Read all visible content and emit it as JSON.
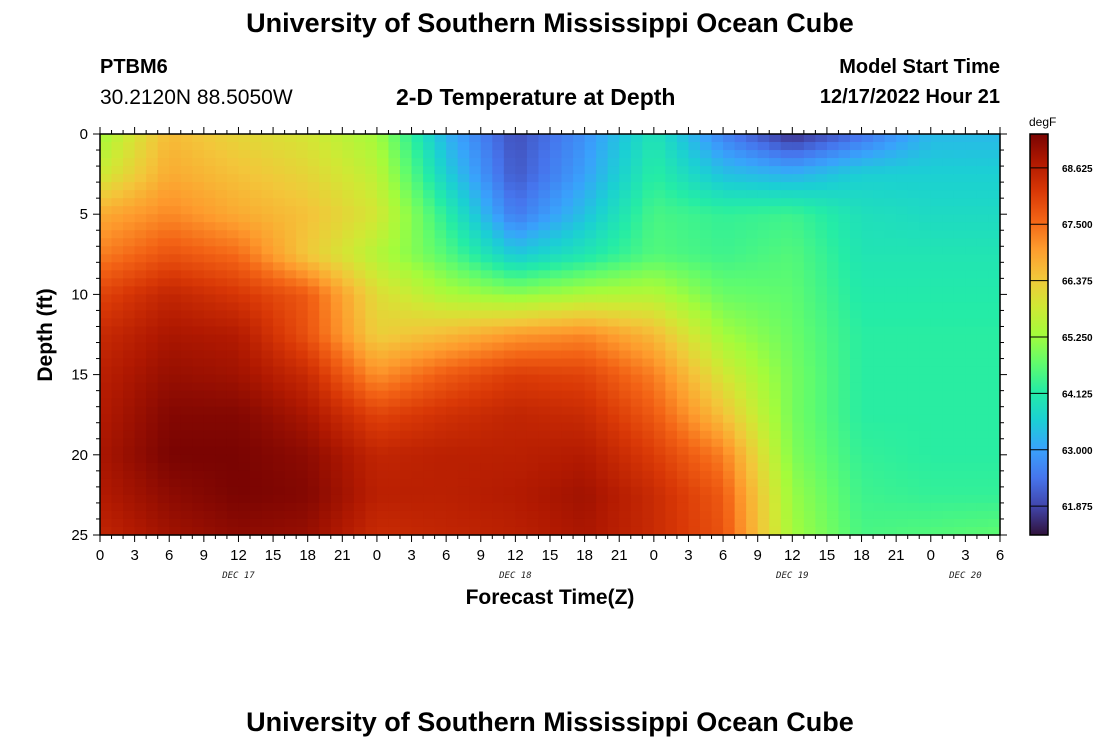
{
  "header": {
    "title": "University of Southern Mississippi Ocean Cube",
    "station": "PTBM6",
    "coords": "30.2120N  88.5050W",
    "subtitle": "2-D Temperature at Depth",
    "model_start_label": "Model Start Time",
    "model_start_value": "12/17/2022 Hour 21"
  },
  "footer": {
    "title": "University of Southern Mississippi Ocean Cube"
  },
  "chart_data": {
    "type": "heatmap",
    "title": "2-D Temperature at Depth",
    "xlabel": "Forecast Time(Z)",
    "ylabel": "Depth (ft)",
    "xlim": [
      0,
      78
    ],
    "ylim": [
      0,
      25
    ],
    "y_inverted": true,
    "x_ticks": [
      0,
      3,
      6,
      9,
      12,
      15,
      18,
      21,
      24,
      27,
      30,
      33,
      36,
      39,
      42,
      45,
      48,
      51,
      54,
      57,
      60,
      63,
      66,
      69,
      72,
      75,
      78
    ],
    "x_tick_labels": [
      "0",
      "3",
      "6",
      "9",
      "12",
      "15",
      "18",
      "21",
      "0",
      "3",
      "6",
      "9",
      "12",
      "15",
      "18",
      "21",
      "0",
      "3",
      "6",
      "9",
      "12",
      "15",
      "18",
      "21",
      "0",
      "3",
      "6"
    ],
    "day_labels": [
      {
        "label": "DEC 17",
        "x": 12
      },
      {
        "label": "DEC 18",
        "x": 36
      },
      {
        "label": "DEC 19",
        "x": 60
      },
      {
        "label": "DEC 20",
        "x": 75
      }
    ],
    "y_ticks": [
      0,
      5,
      10,
      15,
      20,
      25
    ],
    "y_tick_labels": [
      "0",
      "5",
      "10",
      "15",
      "20",
      "25"
    ],
    "colorbar": {
      "unit": "degF",
      "min": 61.3,
      "max": 69.3,
      "tick_values": [
        68.625,
        67.5,
        66.375,
        65.25,
        64.125,
        63.0,
        61.875
      ],
      "tick_labels": [
        "68.625",
        "67.500",
        "66.375",
        "65.250",
        "64.125",
        "63.000",
        "61.875"
      ],
      "colormap": [
        "#30123b",
        "#4145ab",
        "#4675ed",
        "#39a2fc",
        "#1bcfd4",
        "#24eca6",
        "#61fc6c",
        "#a4fc3b",
        "#d1e834",
        "#f3c63a",
        "#fe9b2d",
        "#f36315",
        "#d93806",
        "#b11901",
        "#7a0402"
      ]
    },
    "grid_times": [
      0,
      6,
      12,
      18,
      24,
      30,
      36,
      42,
      48,
      54,
      60,
      66,
      72,
      78
    ],
    "grid_depths": [
      0,
      2.5,
      5,
      7.5,
      10,
      12.5,
      15,
      17.5,
      20,
      22.5,
      25
    ],
    "values": [
      [
        65.3,
        66.6,
        66.2,
        65.9,
        65.3,
        63.2,
        62.0,
        62.8,
        64.0,
        62.6,
        61.6,
        62.4,
        63.3,
        63.3
      ],
      [
        65.8,
        66.8,
        66.5,
        66.2,
        65.6,
        63.6,
        62.1,
        63.0,
        64.2,
        63.4,
        63.2,
        63.6,
        63.6,
        63.6
      ],
      [
        66.8,
        67.2,
        66.8,
        66.5,
        65.9,
        64.2,
        62.5,
        63.4,
        64.5,
        64.3,
        64.4,
        63.9,
        63.8,
        63.8
      ],
      [
        67.3,
        67.8,
        67.5,
        66.4,
        65.5,
        64.6,
        63.5,
        64.0,
        64.6,
        64.4,
        64.6,
        64.0,
        64.0,
        64.0
      ],
      [
        68.0,
        68.5,
        68.2,
        67.7,
        66.1,
        65.4,
        65.1,
        65.4,
        65.5,
        64.8,
        64.7,
        64.1,
        64.1,
        64.1
      ],
      [
        68.4,
        68.8,
        68.7,
        67.8,
        66.3,
        66.6,
        67.0,
        67.2,
        66.6,
        65.3,
        64.8,
        64.2,
        64.2,
        64.2
      ],
      [
        68.6,
        69.0,
        68.9,
        68.4,
        67.1,
        67.7,
        68.1,
        68.0,
        67.3,
        65.9,
        64.9,
        64.2,
        64.2,
        64.2
      ],
      [
        68.7,
        69.2,
        69.2,
        68.8,
        68.0,
        68.3,
        68.5,
        68.4,
        67.7,
        66.5,
        64.9,
        64.2,
        64.2,
        64.2
      ],
      [
        68.8,
        69.3,
        69.3,
        69.1,
        68.5,
        68.6,
        68.6,
        68.7,
        68.1,
        67.3,
        65.0,
        64.3,
        64.2,
        64.2
      ],
      [
        68.7,
        69.1,
        69.3,
        69.2,
        68.6,
        68.6,
        68.7,
        68.9,
        68.4,
        67.7,
        65.2,
        64.4,
        64.3,
        64.3
      ],
      [
        68.5,
        68.9,
        69.1,
        69.0,
        68.4,
        68.5,
        68.6,
        68.8,
        68.4,
        67.8,
        65.3,
        64.5,
        64.6,
        64.7
      ]
    ]
  }
}
